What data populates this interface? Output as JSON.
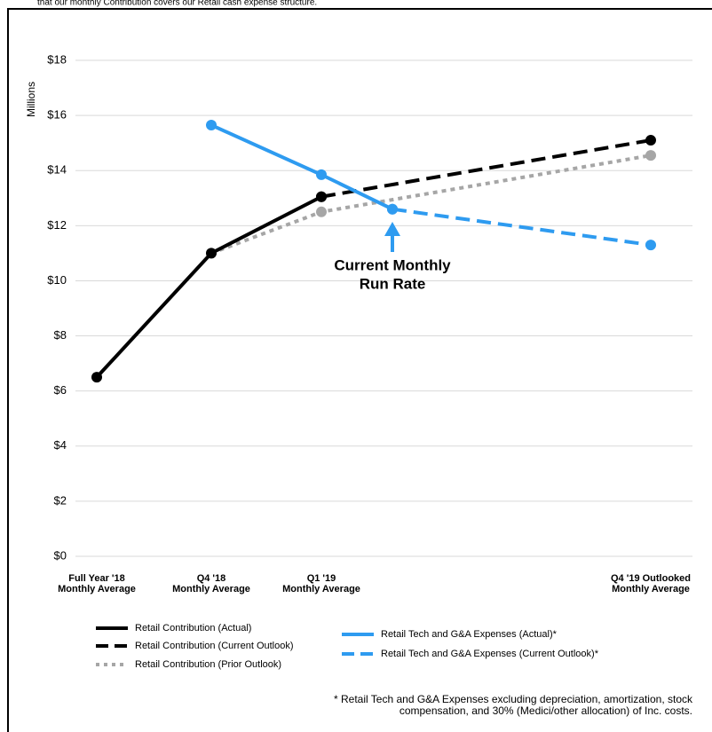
{
  "header_note": "that our monthly Contribution covers our Retail cash expense structure.",
  "chart_data": {
    "type": "line",
    "y_label": "Millions",
    "categories": [
      [
        "Full Year '18",
        "Monthly Average"
      ],
      [
        "Q4 '18",
        "Monthly Average"
      ],
      [
        "Q1 '19",
        "Monthly Average"
      ],
      null,
      [
        "Q4 '19 Outlooked",
        "Monthly Average"
      ]
    ],
    "ylim": [
      0,
      18
    ],
    "yticks": [
      {
        "value": 0,
        "label": "$0"
      },
      {
        "value": 2,
        "label": "$2"
      },
      {
        "value": 4,
        "label": "$4"
      },
      {
        "value": 6,
        "label": "$6"
      },
      {
        "value": 8,
        "label": "$8"
      },
      {
        "value": 10,
        "label": "$10"
      },
      {
        "value": 12,
        "label": "$12"
      },
      {
        "value": 14,
        "label": "$14"
      },
      {
        "value": 16,
        "label": "$16"
      },
      {
        "value": 18,
        "label": "$18"
      }
    ],
    "grid": true,
    "series": [
      {
        "name": "Retail Contribution (Actual)",
        "color": "#000000",
        "dash": "solid",
        "values": [
          6.5,
          11.0,
          13.05,
          null,
          null
        ]
      },
      {
        "name": "Retail Contribution (Current Outlook)",
        "color": "#000000",
        "dash": "dashed",
        "values": [
          null,
          null,
          13.05,
          null,
          15.1
        ]
      },
      {
        "name": "Retail Contribution (Prior Outlook)",
        "color": "#a6a6a6",
        "dash": "dotted",
        "values": [
          null,
          11.0,
          12.5,
          null,
          14.55
        ]
      },
      {
        "name": "Retail Tech and G&A Expenses (Actual)*",
        "color": "#2e9bf0",
        "dash": "solid",
        "values": [
          null,
          15.65,
          13.85,
          12.6,
          null
        ]
      },
      {
        "name": "Retail Tech and G&A Expenses (Current Outlook)*",
        "color": "#2e9bf0",
        "dash": "dashed",
        "values": [
          null,
          null,
          null,
          12.6,
          11.3
        ]
      }
    ],
    "annotation": [
      "Current Monthly",
      "Run Rate"
    ],
    "footnote": [
      "* Retail Tech and G&A Expenses excluding depreciation, amortization, stock",
      "compensation, and 30% (Medici/other allocation) of Inc. costs."
    ]
  }
}
